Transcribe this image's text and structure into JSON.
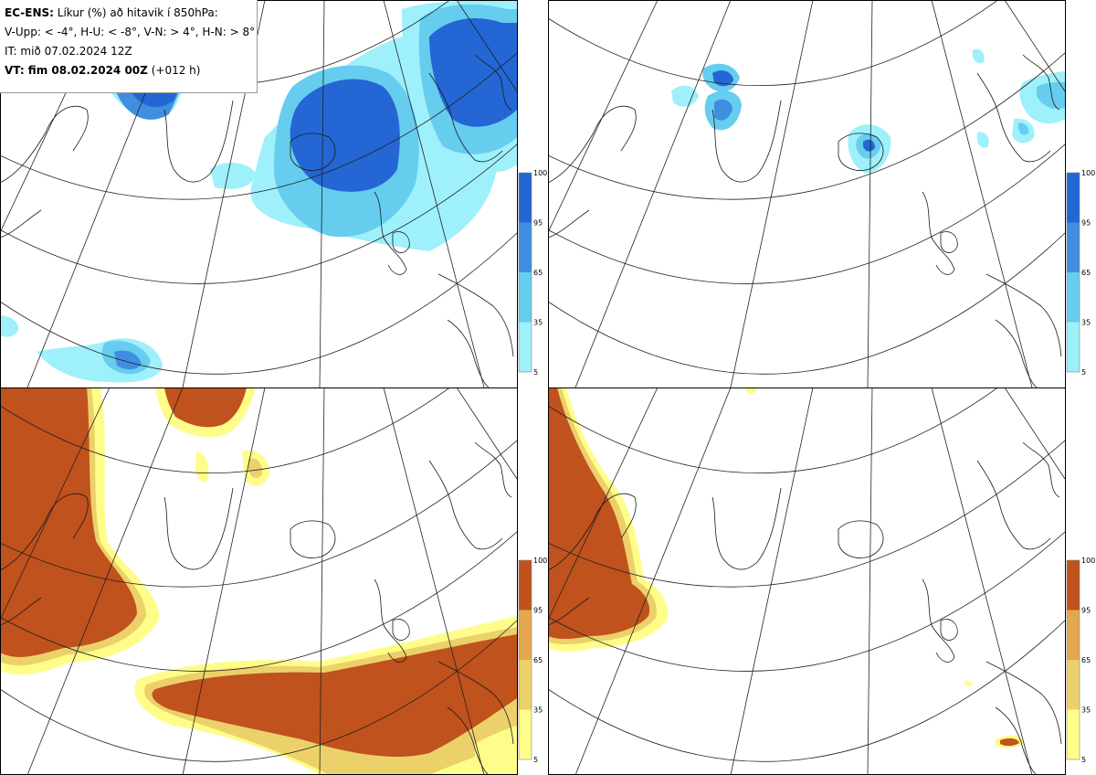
{
  "header": {
    "model": "EC-ENS:",
    "title": "Líkur (%) að hitavik í 850hPa:",
    "thresholds": "V-Upp: < -4°, H-U: < -8°, V-N: > 4°, H-N: > 8°",
    "init_time": "IT: mið 07.02.2024 12Z",
    "valid_label": "VT: fim 08.02.2024 00Z",
    "lead_time": "(+012 h)"
  },
  "panels": [
    {
      "id": "V-Upp",
      "palette": "cold"
    },
    {
      "id": "H-U",
      "palette": "cold"
    },
    {
      "id": "V-N",
      "palette": "warm"
    },
    {
      "id": "H-N",
      "palette": "warm"
    }
  ],
  "colorbar": {
    "ticks": [
      "100",
      "95",
      "65",
      "35",
      "5"
    ],
    "cold_colors": [
      "#2466d4",
      "#3f8ee0",
      "#66cdef",
      "#9ef0fb"
    ],
    "warm_colors": [
      "#c0521d",
      "#e3a84e",
      "#ecd16a",
      "#fefd8a"
    ]
  }
}
